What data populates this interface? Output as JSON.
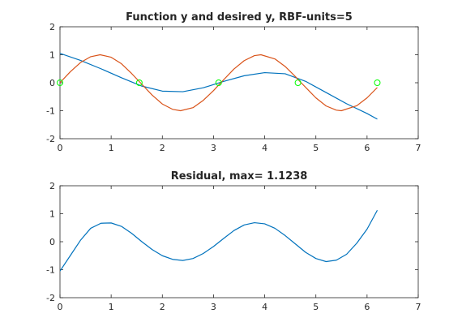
{
  "chart_data": [
    {
      "type": "line",
      "title": "Function y and desired y, RBF-units=5",
      "xlabel": "",
      "ylabel": "",
      "xlim": [
        0,
        7
      ],
      "ylim": [
        -2,
        2
      ],
      "xticks": [
        0,
        1,
        2,
        3,
        4,
        5,
        6,
        7
      ],
      "yticks": [
        -2,
        -1,
        0,
        1,
        2
      ],
      "grid": false,
      "series": [
        {
          "color": "#0072bd",
          "x": [
            0.0,
            0.4,
            0.8,
            1.2,
            1.6,
            2.0,
            2.4,
            2.8,
            3.2,
            3.6,
            4.0,
            4.4,
            4.8,
            5.2,
            5.6,
            6.0,
            6.2
          ],
          "y": [
            1.05,
            0.8,
            0.5,
            0.18,
            -0.12,
            -0.3,
            -0.32,
            -0.18,
            0.05,
            0.25,
            0.36,
            0.32,
            0.05,
            -0.35,
            -0.75,
            -1.1,
            -1.3
          ]
        },
        {
          "color": "#d95319",
          "x": [
            0.0,
            0.2,
            0.4,
            0.6,
            0.785,
            1.0,
            1.2,
            1.4,
            1.571,
            1.8,
            2.0,
            2.2,
            2.356,
            2.6,
            2.8,
            3.0,
            3.142,
            3.4,
            3.6,
            3.8,
            3.927,
            4.2,
            4.4,
            4.6,
            4.712,
            5.0,
            5.2,
            5.4,
            5.498,
            5.8,
            6.0,
            6.2
          ],
          "y": [
            0.0,
            0.39,
            0.72,
            0.93,
            1.0,
            0.91,
            0.68,
            0.33,
            0.0,
            -0.44,
            -0.76,
            -0.95,
            -1.0,
            -0.89,
            -0.63,
            -0.28,
            0.0,
            0.49,
            0.79,
            0.97,
            1.0,
            0.85,
            0.58,
            0.22,
            0.0,
            -0.54,
            -0.83,
            -0.98,
            -1.0,
            -0.82,
            -0.54,
            -0.17
          ]
        },
        {
          "style": "circles",
          "color": "#00ff00",
          "x": [
            0.0,
            1.55,
            3.1,
            4.65,
            6.2
          ],
          "y": [
            0,
            0,
            0,
            0,
            0
          ]
        }
      ]
    },
    {
      "type": "line",
      "title": "Residual, max= 1.1238",
      "xlabel": "",
      "ylabel": "",
      "xlim": [
        0,
        7
      ],
      "ylim": [
        -2,
        2
      ],
      "xticks": [
        0,
        1,
        2,
        3,
        4,
        5,
        6,
        7
      ],
      "yticks": [
        -2,
        -1,
        0,
        1,
        2
      ],
      "grid": false,
      "series": [
        {
          "color": "#0072bd",
          "x": [
            0.0,
            0.2,
            0.4,
            0.6,
            0.8,
            1.0,
            1.2,
            1.4,
            1.6,
            1.8,
            2.0,
            2.2,
            2.4,
            2.6,
            2.8,
            3.0,
            3.2,
            3.4,
            3.6,
            3.8,
            4.0,
            4.2,
            4.4,
            4.6,
            4.8,
            5.0,
            5.2,
            5.4,
            5.6,
            5.8,
            6.0,
            6.2
          ],
          "y": [
            -1.05,
            -0.5,
            0.05,
            0.48,
            0.66,
            0.67,
            0.55,
            0.3,
            0.0,
            -0.28,
            -0.5,
            -0.63,
            -0.67,
            -0.6,
            -0.42,
            -0.17,
            0.12,
            0.4,
            0.6,
            0.68,
            0.64,
            0.48,
            0.22,
            -0.08,
            -0.38,
            -0.6,
            -0.71,
            -0.66,
            -0.45,
            -0.05,
            0.45,
            1.1238
          ]
        }
      ]
    }
  ]
}
